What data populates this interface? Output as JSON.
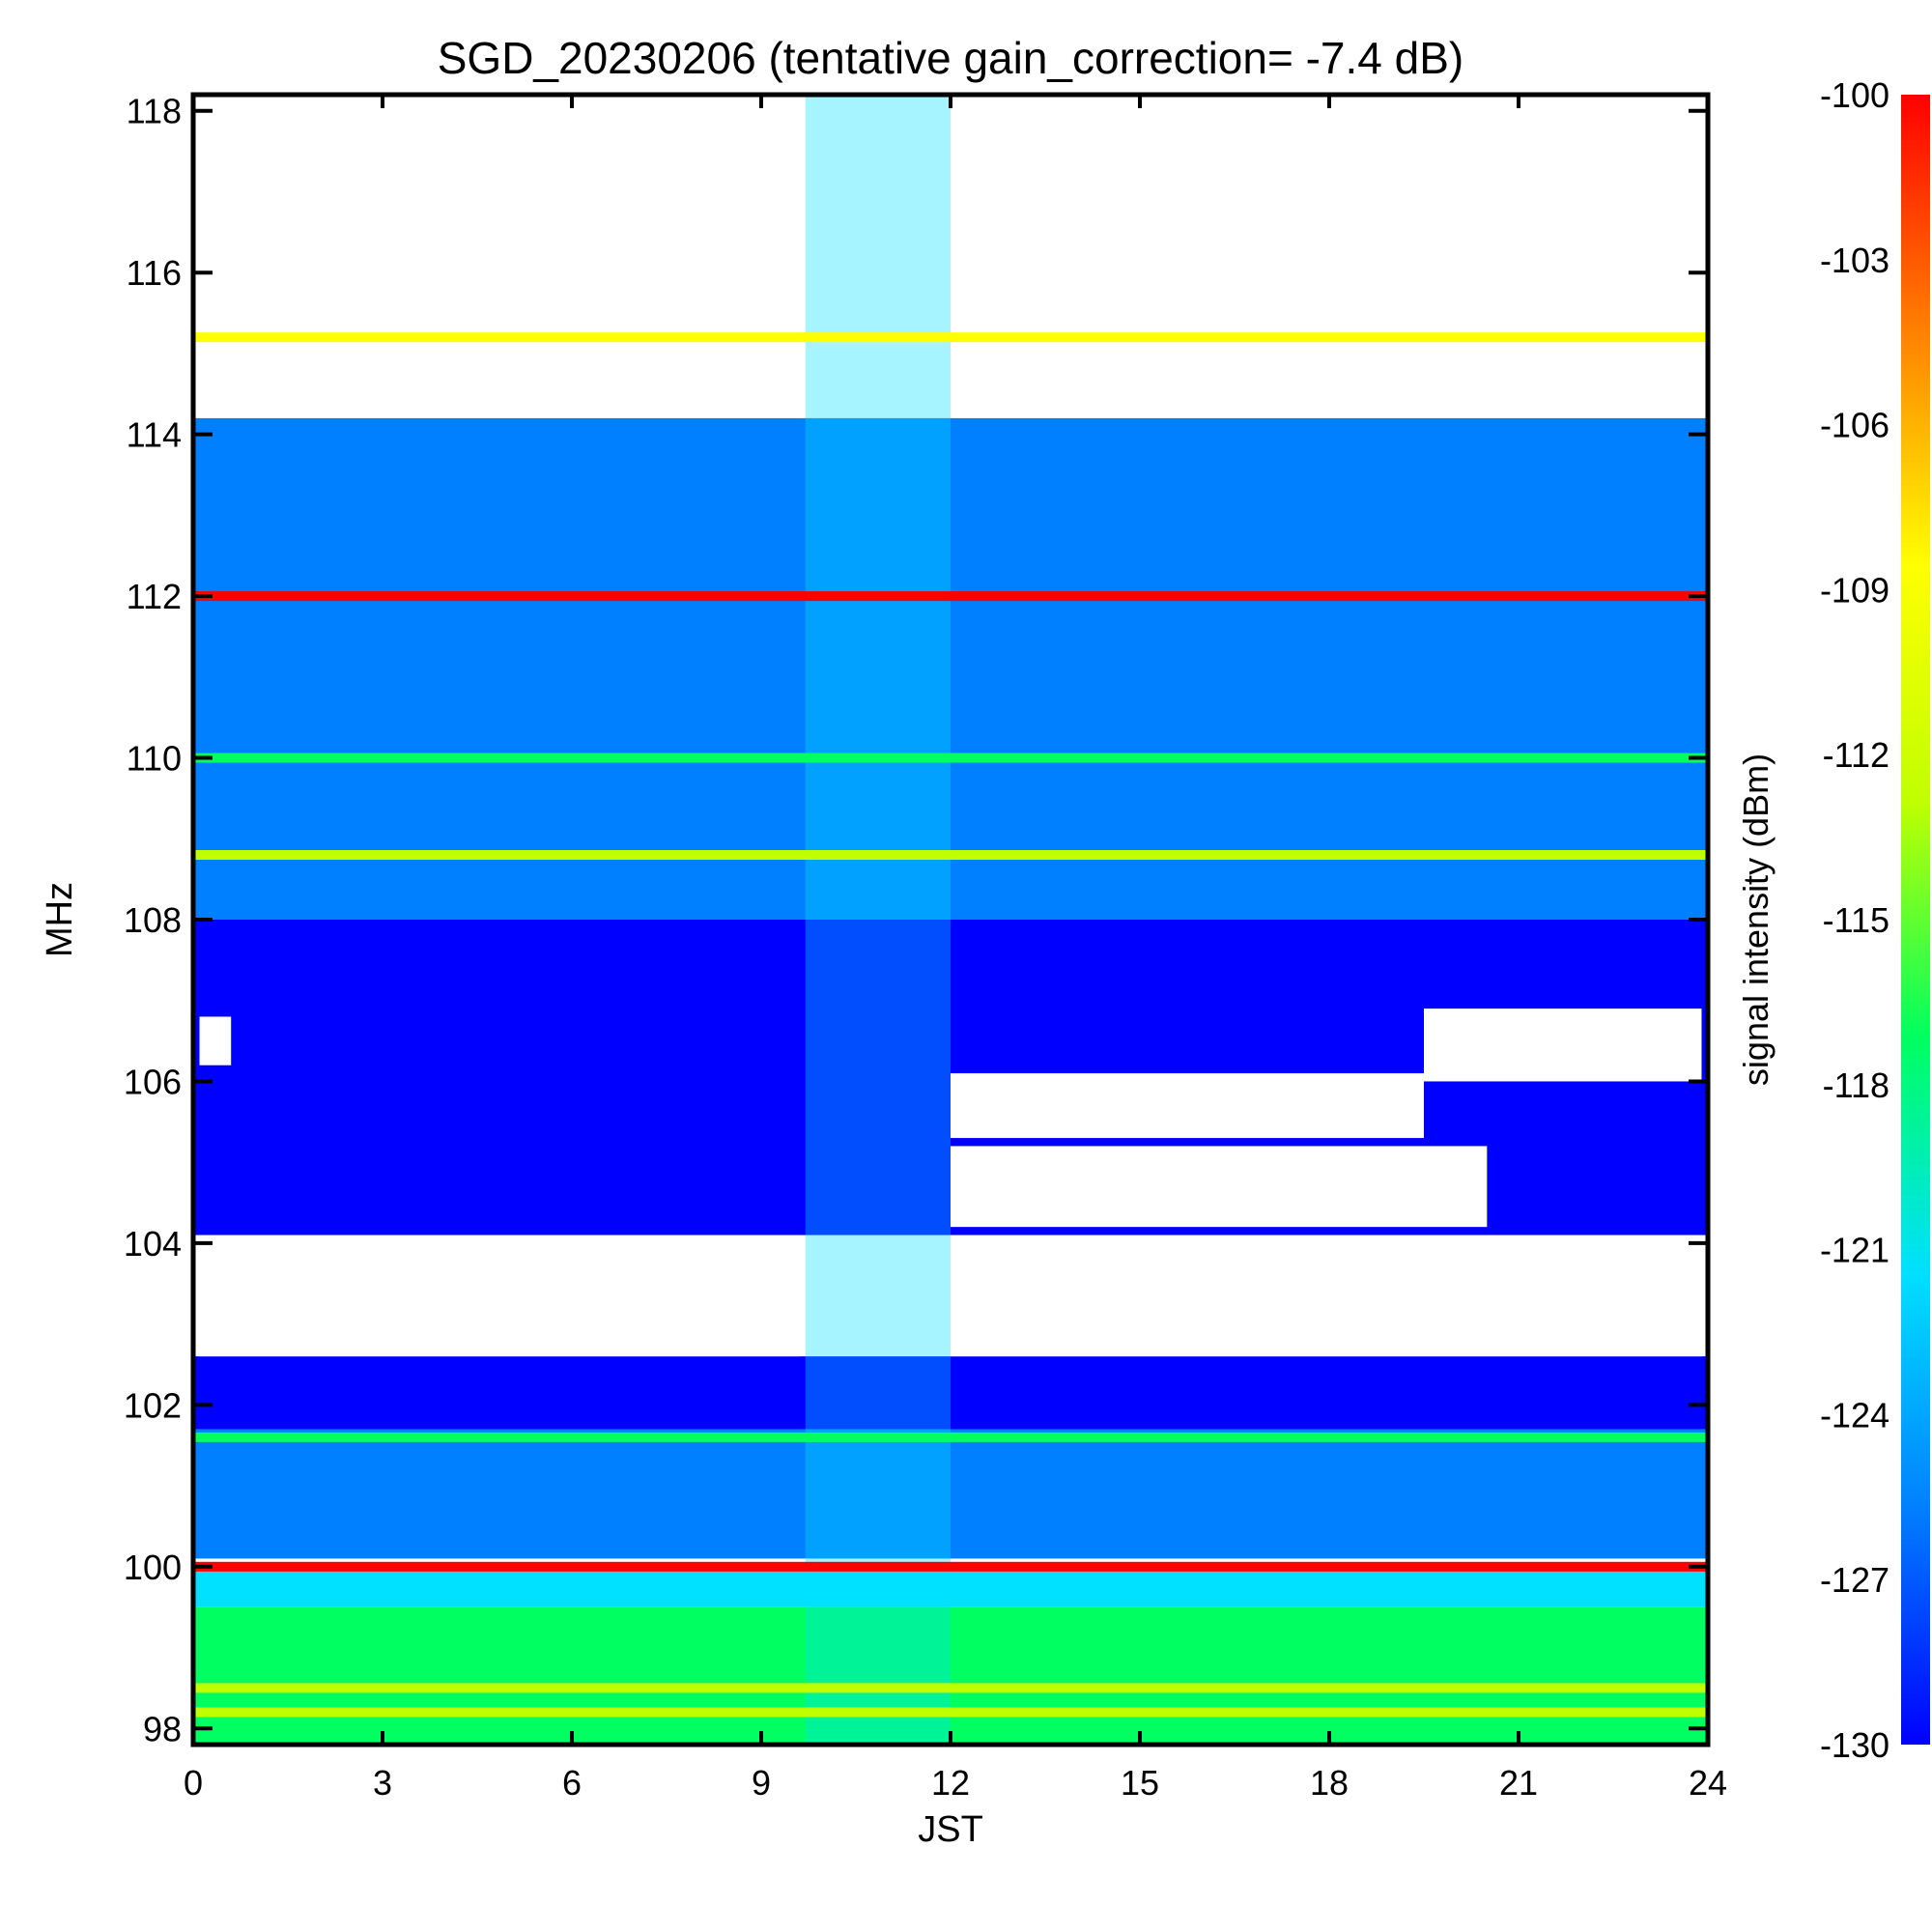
{
  "chart_data": {
    "type": "heatmap",
    "title": "SGD_20230206 (tentative gain_correction= -7.4 dB)",
    "xlabel": "JST",
    "ylabel": "MHz",
    "xlim": [
      0,
      24
    ],
    "ylim": [
      97.8,
      118.2
    ],
    "x_ticks": [
      "0",
      "3",
      "6",
      "9",
      "12",
      "15",
      "18",
      "21",
      "24"
    ],
    "y_ticks": [
      "98",
      "100",
      "102",
      "104",
      "106",
      "108",
      "110",
      "112",
      "114",
      "116",
      "118"
    ],
    "colorbar": {
      "label": "signal intensity (dBm)",
      "range": [
        -130,
        -100
      ],
      "ticks": [
        "-100",
        "-103",
        "-106",
        "-109",
        "-112",
        "-115",
        "-118",
        "-121",
        "-124",
        "-127",
        "-130"
      ],
      "colors": [
        "#0000ff",
        "#0080ff",
        "#00e0ff",
        "#00ff60",
        "#c0ff00",
        "#ffff00",
        "#ff8000",
        "#ff0000"
      ]
    },
    "regions": [
      {
        "name": "band-97.8-99.5",
        "f_low": 97.8,
        "f_high": 99.5,
        "t_start": 0,
        "t_end": 24,
        "dbm": -118
      },
      {
        "name": "band-99.5-100",
        "f_low": 99.5,
        "f_high": 100.0,
        "t_start": 0,
        "t_end": 24,
        "dbm": -122
      },
      {
        "name": "band-100.1-101.7",
        "f_low": 100.1,
        "f_high": 101.7,
        "t_start": 0,
        "t_end": 24,
        "dbm": -124
      },
      {
        "name": "band-101.7-102.6",
        "f_low": 101.7,
        "f_high": 102.6,
        "t_start": 0,
        "t_end": 24,
        "dbm": -128
      },
      {
        "name": "band-104.1-108",
        "f_low": 104.1,
        "f_high": 108.0,
        "t_start": 0,
        "t_end": 24,
        "dbm": -128
      },
      {
        "name": "band-108-112",
        "f_low": 108.0,
        "f_high": 112.0,
        "t_start": 0,
        "t_end": 24,
        "dbm": -126
      },
      {
        "name": "band-112-114.2",
        "f_low": 112.0,
        "f_high": 114.2,
        "t_start": 0,
        "t_end": 24,
        "dbm": -127
      },
      {
        "name": "quiet-102.6-104.1-night",
        "f_low": 102.6,
        "f_high": 104.1,
        "t_start": 0.1,
        "t_end": 9.6,
        "dbm": null
      },
      {
        "name": "quiet-102.6-104.1-day",
        "f_low": 102.6,
        "f_high": 104.1,
        "t_start": 12.0,
        "t_end": 23.9,
        "dbm": null
      },
      {
        "name": "quiet-104.2-105.2",
        "f_low": 104.2,
        "f_high": 105.2,
        "t_start": 12.0,
        "t_end": 20.5,
        "dbm": null
      },
      {
        "name": "quiet-105.3-106.1",
        "f_low": 105.3,
        "f_high": 106.1,
        "t_start": 12.0,
        "t_end": 19.5,
        "dbm": null
      },
      {
        "name": "quiet-106.0-106.9-evening",
        "f_low": 106.0,
        "f_high": 106.9,
        "t_start": 19.5,
        "t_end": 23.9,
        "dbm": null
      },
      {
        "name": "quiet-106.2-106.8-morning",
        "f_low": 106.2,
        "f_high": 106.8,
        "t_start": 0.1,
        "t_end": 0.6,
        "dbm": null
      },
      {
        "name": "quiet-114.5-118.2",
        "f_low": 114.5,
        "f_high": 118.2,
        "t_start": 0,
        "t_end": 24,
        "dbm": null
      },
      {
        "name": "daytime-enhancement",
        "f_low": 97.8,
        "f_high": 118.2,
        "t_start": 9.7,
        "t_end": 12.0,
        "dbm": -121
      }
    ],
    "stations": [
      {
        "freq_mhz": 100.0,
        "dbm": -100
      },
      {
        "freq_mhz": 112.0,
        "dbm": -101
      },
      {
        "freq_mhz": 115.2,
        "dbm": -109
      },
      {
        "freq_mhz": 108.8,
        "dbm": -115
      },
      {
        "freq_mhz": 110.0,
        "dbm": -116
      },
      {
        "freq_mhz": 101.6,
        "dbm": -119
      },
      {
        "freq_mhz": 98.2,
        "dbm": -115
      },
      {
        "freq_mhz": 98.5,
        "dbm": -114
      }
    ]
  }
}
